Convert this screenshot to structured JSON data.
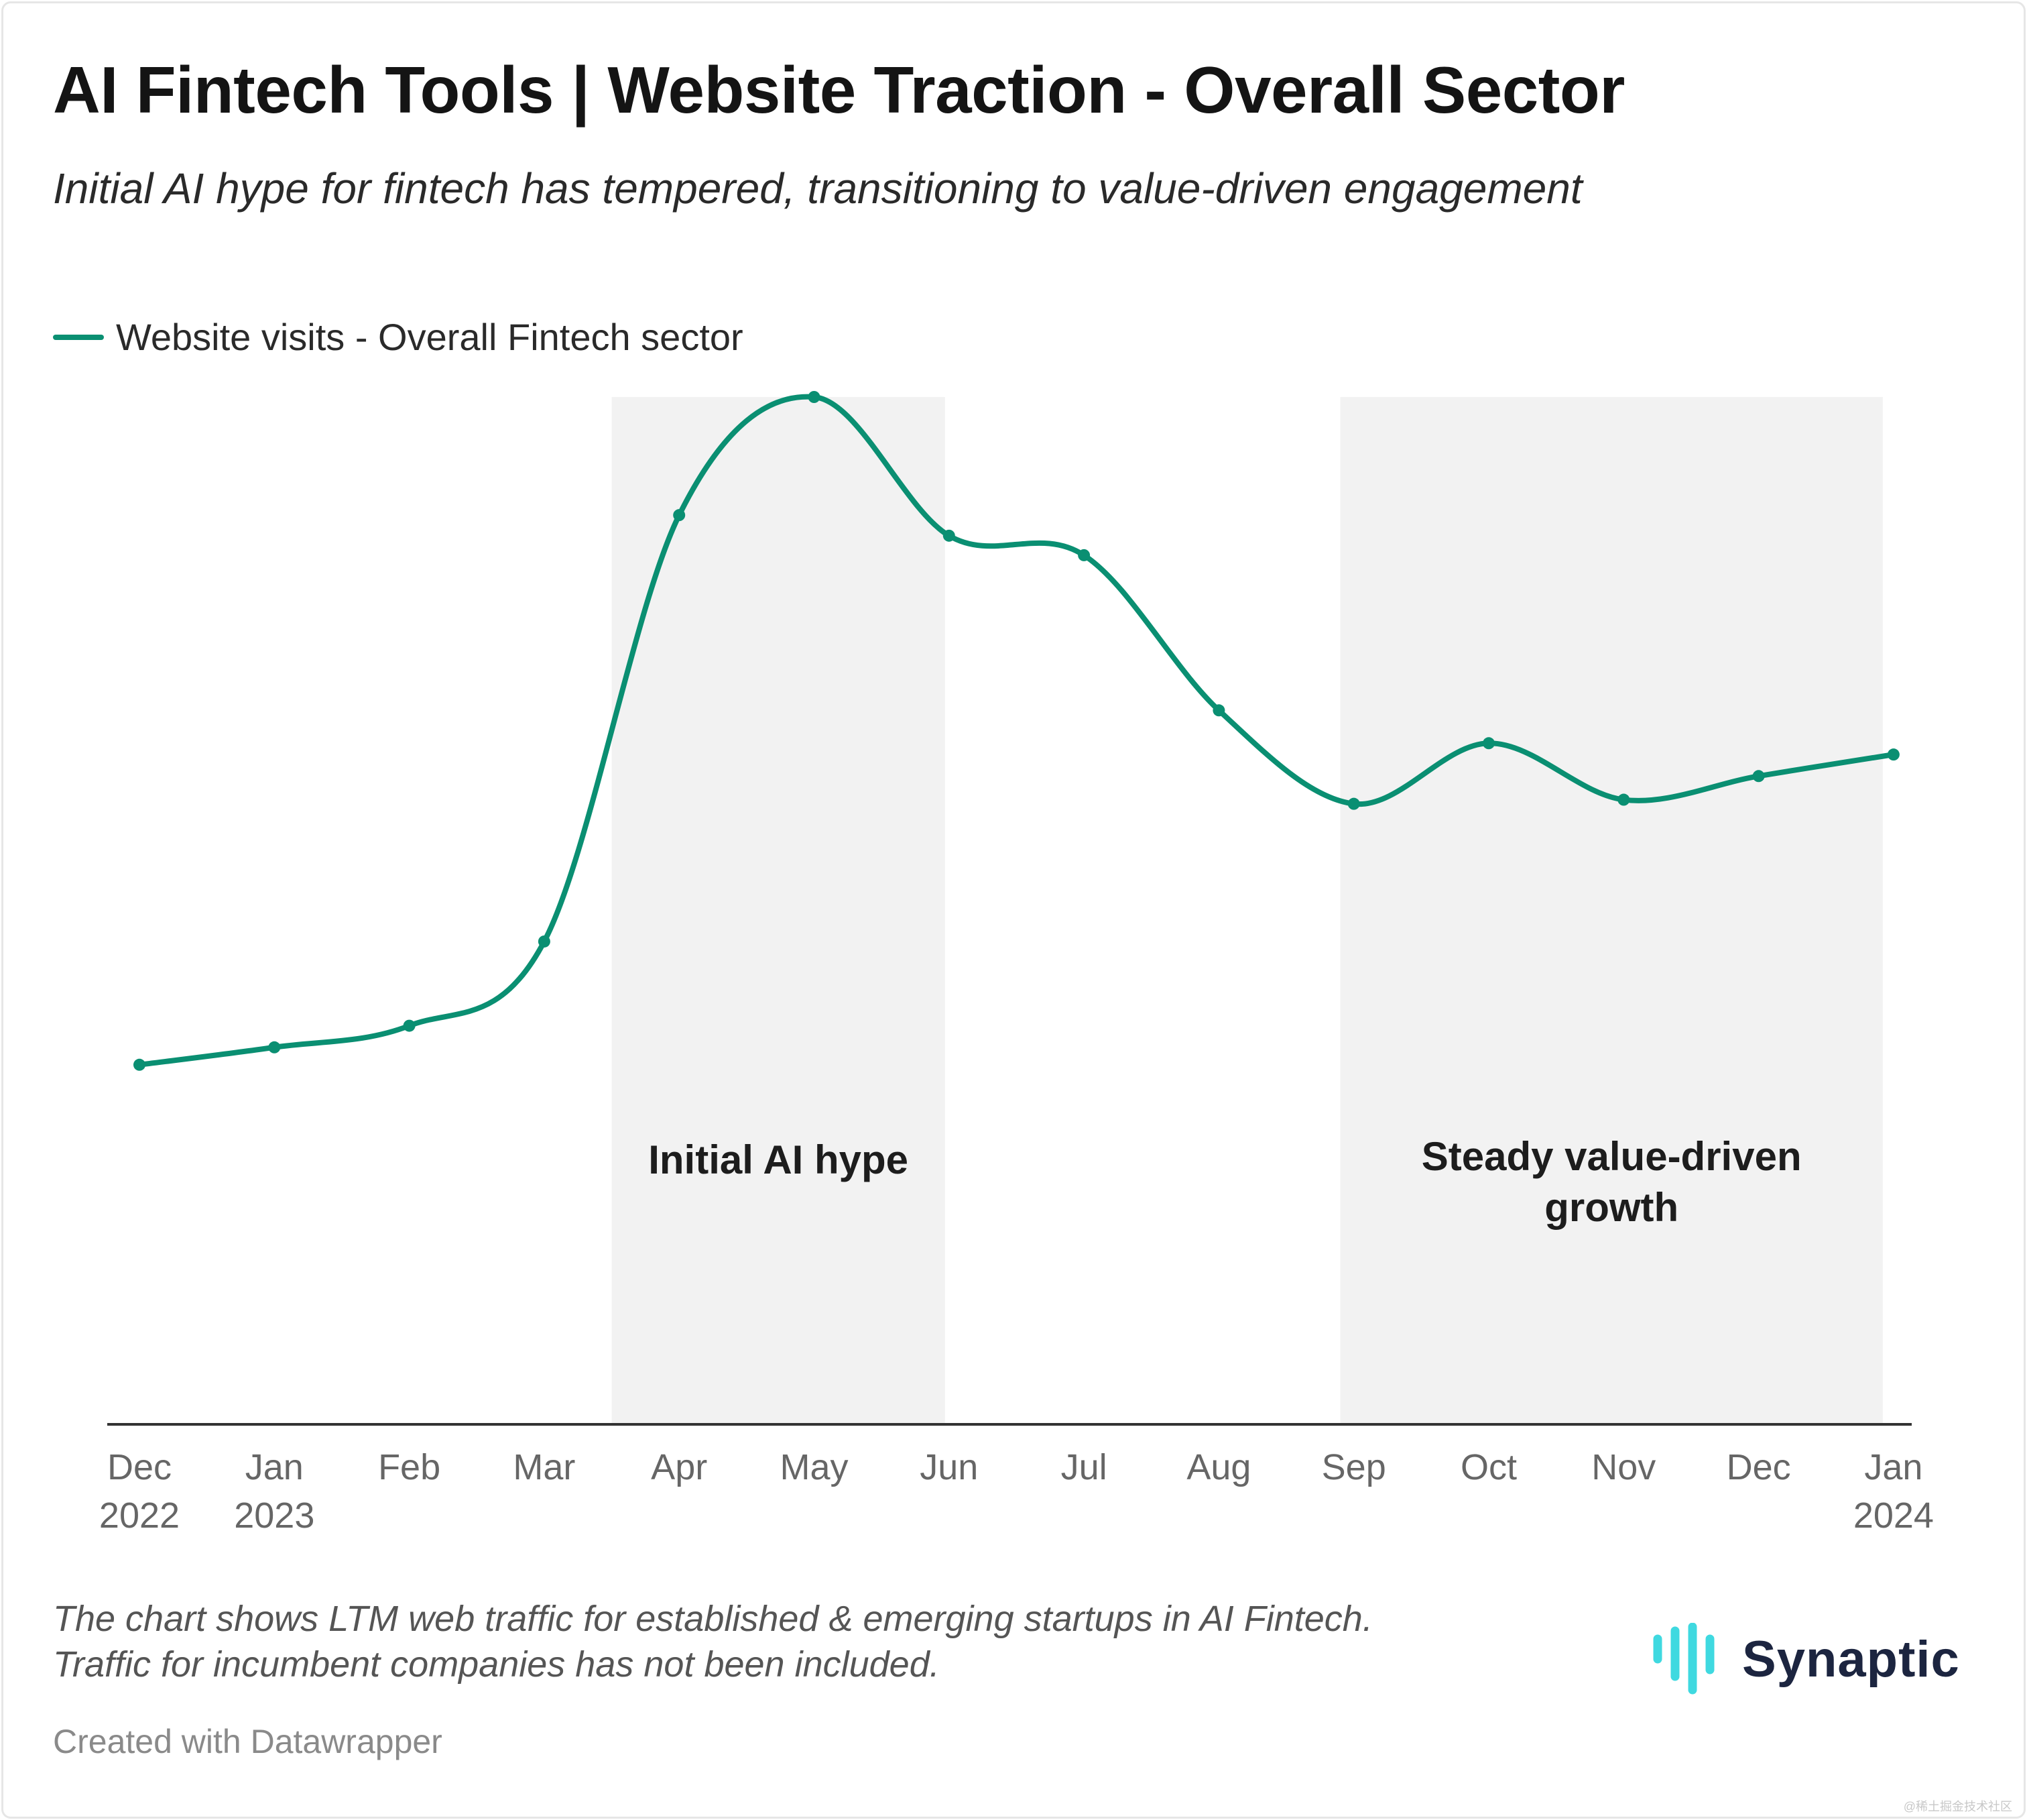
{
  "header": {
    "title": "AI Fintech Tools | Website Traction - Overall Sector",
    "subtitle": "Initial AI hype for fintech has tempered, transitioning to value-driven engagement"
  },
  "legend": {
    "label": "Website visits - Overall Fintech sector"
  },
  "colors": {
    "line": "#0a8f72",
    "shade": "#f2f2f2",
    "axis": "#333333",
    "tick_text": "#666666",
    "brand_icon": "#3fd9e0",
    "brand_text": "#1c2540"
  },
  "chart_data": {
    "type": "line",
    "title": "AI Fintech Tools | Website Traction - Overall Sector",
    "subtitle": "Initial AI hype for fintech has tempered, transitioning to value-driven engagement",
    "x_ticks": [
      [
        "Dec",
        "2022"
      ],
      [
        "Jan",
        "2023"
      ],
      [
        "Feb",
        ""
      ],
      [
        "Mar",
        ""
      ],
      [
        "Apr",
        ""
      ],
      [
        "May",
        ""
      ],
      [
        "Jun",
        ""
      ],
      [
        "Jul",
        ""
      ],
      [
        "Aug",
        ""
      ],
      [
        "Sep",
        ""
      ],
      [
        "Oct",
        ""
      ],
      [
        "Nov",
        ""
      ],
      [
        "Dec",
        ""
      ],
      [
        "Jan",
        "2024"
      ]
    ],
    "series": [
      {
        "name": "Website visits - Overall Fintech sector",
        "values": [
          35,
          36.7,
          38.8,
          47,
          88.5,
          100,
          86.5,
          84.6,
          69.5,
          60.4,
          66.3,
          60.8,
          63.1,
          65.2
        ]
      }
    ],
    "ylim": [
      0,
      100
    ],
    "grid": false,
    "legend_position": "top-left",
    "y_axis_labels": false,
    "annotations": [
      {
        "label": "Initial AI hype",
        "x_start": 3.5,
        "x_end": 5.97
      },
      {
        "label": "Steady value-driven growth",
        "x_start": 8.9,
        "x_end": 12.92
      }
    ]
  },
  "footnote": {
    "line1": "The chart shows LTM web traffic for established & emerging startups in AI Fintech.",
    "line2": "Traffic for incumbent companies has not been included."
  },
  "credit": "Created with Datawrapper",
  "brand": {
    "name": "Synaptic",
    "icon": "synaptic-bars-icon"
  },
  "watermark": "@稀土掘金技术社区"
}
